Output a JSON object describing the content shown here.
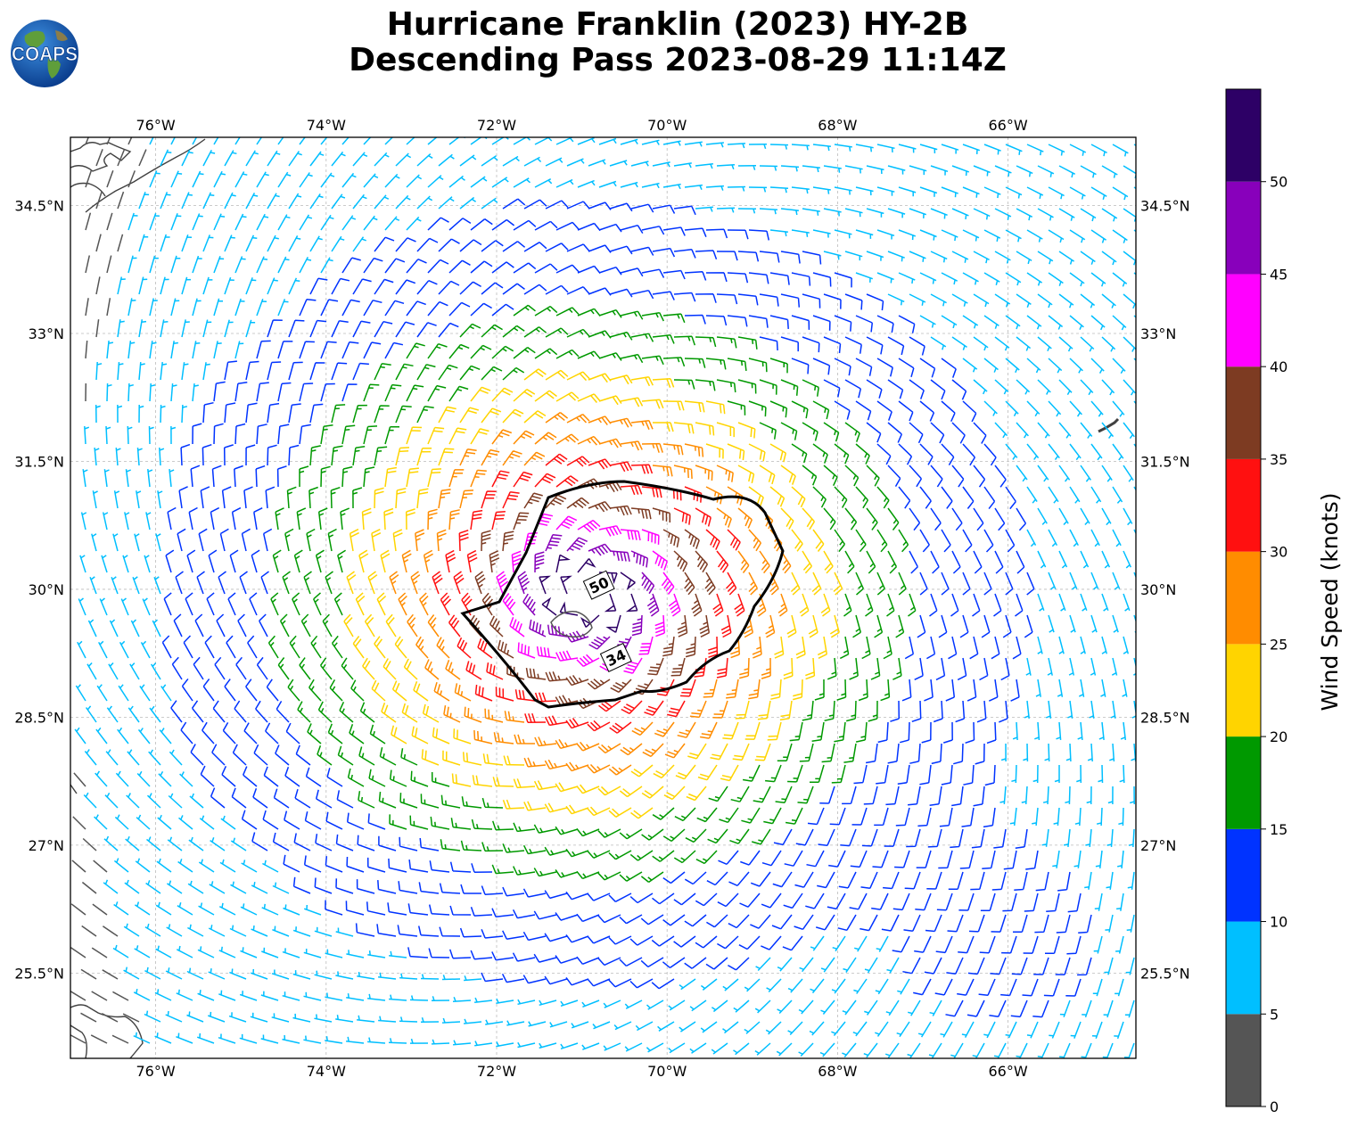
{
  "title": {
    "line1": "Hurricane Franklin (2023) HY-2B",
    "line2": "Descending Pass 2023-08-29 11:14Z"
  },
  "logo": {
    "text": "COAPS",
    "icon": "globe-icon"
  },
  "map": {
    "lon_range": [
      -77.0,
      -64.5
    ],
    "lat_range": [
      24.5,
      35.3
    ],
    "lon_ticks": [
      {
        "value": -76,
        "label": "76°W"
      },
      {
        "value": -74,
        "label": "74°W"
      },
      {
        "value": -72,
        "label": "72°W"
      },
      {
        "value": -70,
        "label": "70°W"
      },
      {
        "value": -68,
        "label": "68°W"
      },
      {
        "value": -66,
        "label": "66°W"
      }
    ],
    "lat_ticks": [
      {
        "value": 34.5,
        "label": "34.5°N"
      },
      {
        "value": 33.0,
        "label": "33°N"
      },
      {
        "value": 31.5,
        "label": "31.5°N"
      },
      {
        "value": 30.0,
        "label": "30°N"
      },
      {
        "value": 28.5,
        "label": "28.5°N"
      },
      {
        "value": 27.0,
        "label": "27°N"
      },
      {
        "value": 25.5,
        "label": "25.5°N"
      }
    ],
    "gridlines": true,
    "storm_center": {
      "lon": -70.9,
      "lat": 29.95
    },
    "contours": [
      {
        "label": "34",
        "label_lon": -70.6,
        "label_lat": 29.2
      },
      {
        "label": "50",
        "label_lon": -70.8,
        "label_lat": 30.05
      }
    ]
  },
  "colorbar": {
    "label": "Wind Speed (knots)",
    "ticks": [
      "0",
      "5",
      "10",
      "15",
      "20",
      "25",
      "30",
      "35",
      "40",
      "45",
      "50"
    ],
    "max": 55,
    "colors": [
      "#555555",
      "#00bfff",
      "#0033ff",
      "#009900",
      "#ffd400",
      "#ff8c00",
      "#ff1010",
      "#7d3b22",
      "#ff00ff",
      "#8800bb",
      "#2d0066"
    ]
  },
  "colors": {
    "land": "#404040",
    "contour": "#000000",
    "grid": "#bbbbbb"
  }
}
